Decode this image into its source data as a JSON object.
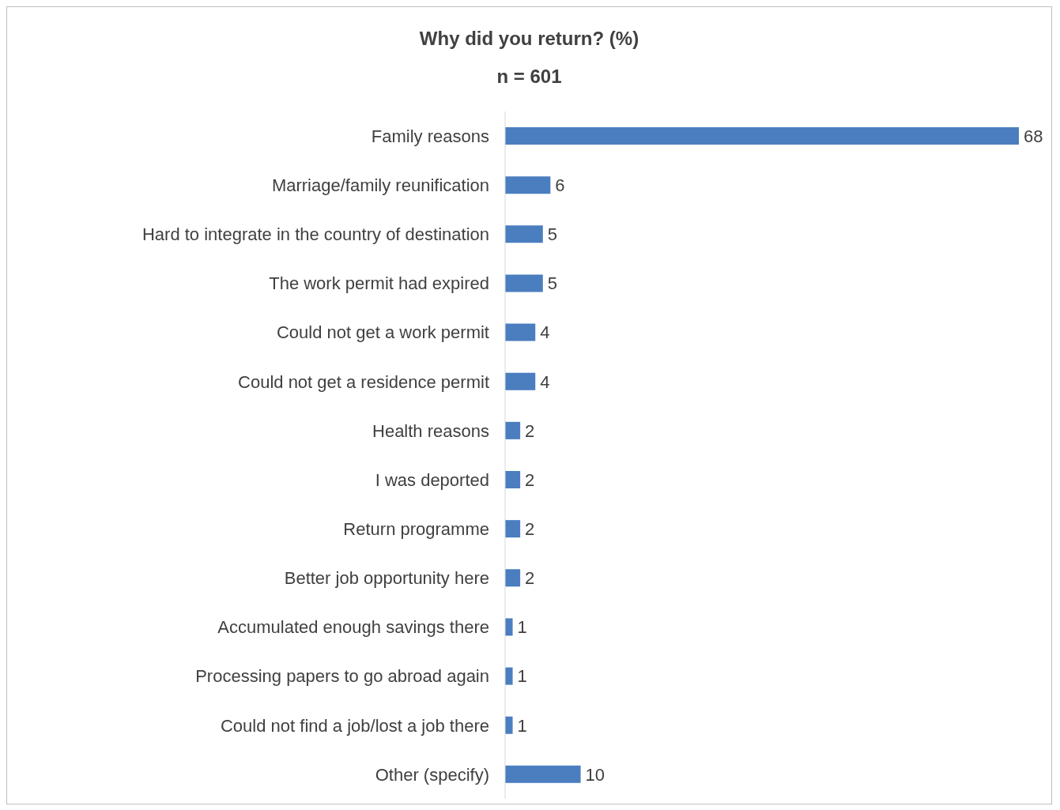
{
  "chart_data": {
    "type": "bar",
    "orientation": "horizontal",
    "title": "Why did you return? (%)",
    "subtitle": "n = 601",
    "categories": [
      "Family reasons",
      "Marriage/family reunification",
      "Hard to integrate in the country of destination",
      "The work permit had expired",
      "Could not get a work permit",
      "Could not get a residence permit",
      "Health reasons",
      "I was deported",
      "Return programme",
      "Better job opportunity here",
      "Accumulated enough savings there",
      "Processing papers to go abroad again",
      "Could not find a job/lost a job there",
      "Other (specify)"
    ],
    "values": [
      68,
      6,
      5,
      5,
      4,
      4,
      2,
      2,
      2,
      2,
      1,
      1,
      1,
      10
    ],
    "color": "#4a7ebf",
    "data_labels": true,
    "tick_labels": "y"
  }
}
